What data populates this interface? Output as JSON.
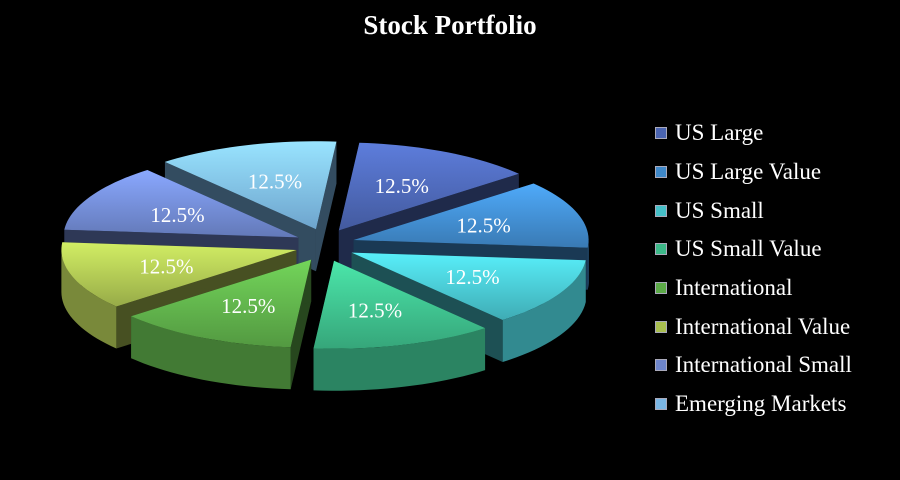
{
  "chart_data": {
    "type": "pie",
    "title": "Stock Portfolio",
    "style": "3d-exploded",
    "legend_position": "right",
    "categories": [
      "US Large",
      "US Large Value",
      "US Small",
      "US Small Value",
      "International",
      "International Value",
      "International Small",
      "Emerging Markets"
    ],
    "values": [
      12.5,
      12.5,
      12.5,
      12.5,
      12.5,
      12.5,
      12.5,
      12.5
    ],
    "labels": [
      "12.5%",
      "12.5%",
      "12.5%",
      "12.5%",
      "12.5%",
      "12.5%",
      "12.5%",
      "12.5%"
    ],
    "colors": [
      "#4a64b0",
      "#3f88c8",
      "#46bfc8",
      "#3cb888",
      "#5caa48",
      "#a8be50",
      "#6e86cc",
      "#7ab6e4"
    ]
  }
}
